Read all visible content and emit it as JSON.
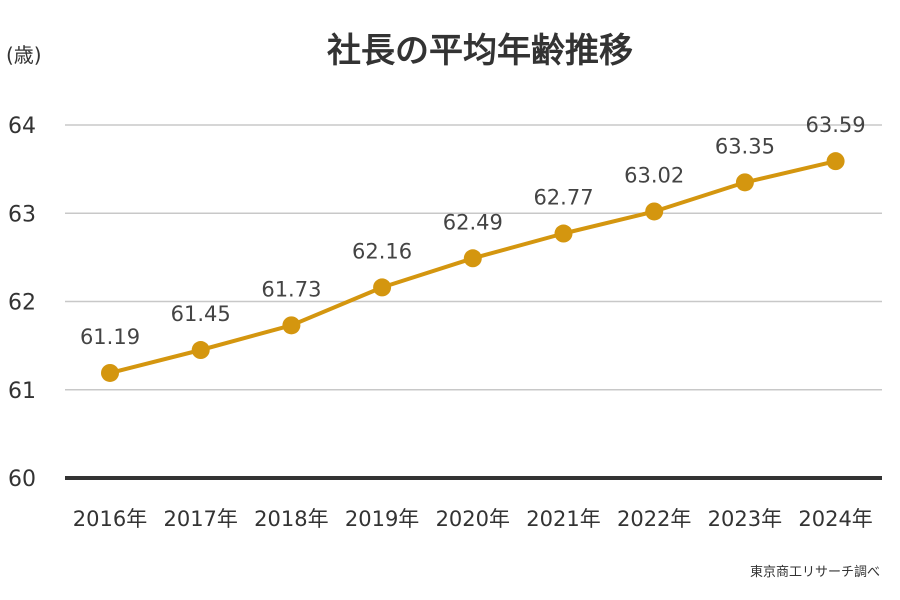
{
  "chart_data": {
    "type": "line",
    "title": "社長の平均年齢推移",
    "ylabel": "(歳)",
    "xlabel": "",
    "categories": [
      "2016年",
      "2017年",
      "2018年",
      "2019年",
      "2020年",
      "2021年",
      "2022年",
      "2023年",
      "2024年"
    ],
    "values": [
      61.19,
      61.45,
      61.73,
      62.16,
      62.49,
      62.77,
      63.02,
      63.35,
      63.59
    ],
    "value_labels": [
      "61.19",
      "61.45",
      "61.73",
      "62.16",
      "62.49",
      "62.77",
      "63.02",
      "63.35",
      "63.59"
    ],
    "ylim": [
      60,
      64
    ],
    "yticks": [
      "60",
      "61",
      "62",
      "63",
      "64"
    ],
    "grid": true,
    "legend": "none",
    "line_color": "#d4960f",
    "grid_color": "#c8c8c8",
    "baseline_color": "#333333"
  },
  "source_note": "東京商工リサーチ調べ"
}
